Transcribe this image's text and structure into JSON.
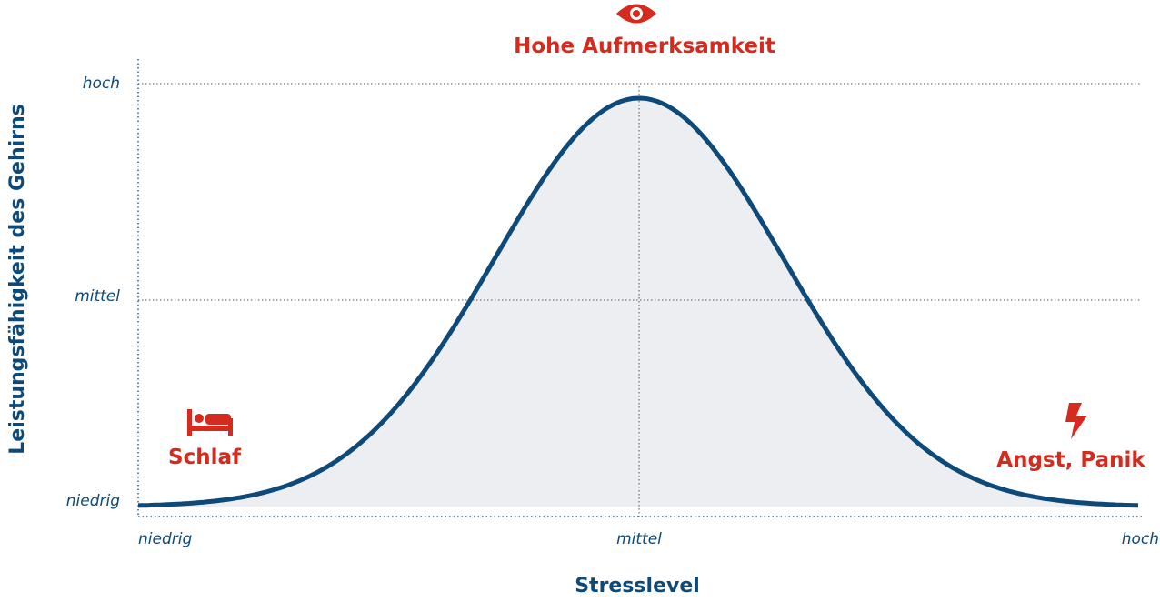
{
  "annotations": {
    "top": "Hohe Aufmerksamkeit",
    "left": "Schlaf",
    "right": "Angst, Panik"
  },
  "y_axis": {
    "title": "Leistungsfähigkeit des Gehirns",
    "labels": [
      "niedrig",
      "mittel",
      "hoch"
    ]
  },
  "x_axis": {
    "title": "Stresslevel",
    "labels": [
      "niedrig",
      "mittel",
      "hoch"
    ]
  }
}
